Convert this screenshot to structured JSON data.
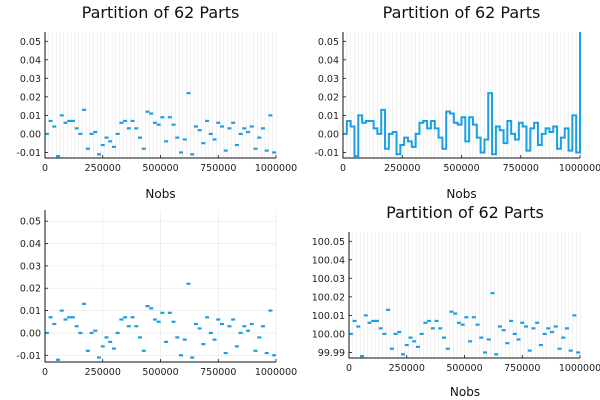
{
  "series_color": "#199fe3",
  "chart_data": [
    {
      "type": "scatter",
      "title": "Partition of 62 Parts",
      "xlabel": "Nobs",
      "ylabel": "",
      "xlim": [
        0,
        1000000
      ],
      "ylim": [
        -0.013,
        0.055
      ],
      "x_ticks": [
        0,
        250000,
        500000,
        750000,
        1000000
      ],
      "x_tick_labels": [
        "0",
        "250000",
        "500000",
        "750000",
        "1000000"
      ],
      "y_ticks": [
        -0.01,
        0.0,
        0.01,
        0.02,
        0.03,
        0.04,
        0.05
      ],
      "y_tick_labels": [
        "-0.01",
        "0.00",
        "0.01",
        "0.02",
        "0.03",
        "0.04",
        "0.05"
      ],
      "grid": "vertical-dense",
      "marker": "dash",
      "values": [
        0.0,
        0.007,
        0.004,
        -0.012,
        0.01,
        0.006,
        0.007,
        0.007,
        0.003,
        0.0,
        0.013,
        -0.008,
        0.0,
        0.001,
        -0.011,
        -0.006,
        -0.002,
        -0.004,
        -0.007,
        0.0,
        0.006,
        0.007,
        0.003,
        0.007,
        0.003,
        -0.002,
        -0.008,
        0.012,
        0.011,
        0.006,
        0.005,
        0.009,
        -0.004,
        0.009,
        0.005,
        -0.002,
        -0.01,
        -0.003,
        0.022,
        -0.011,
        0.004,
        0.002,
        -0.005,
        0.007,
        0.0,
        -0.003,
        0.006,
        0.004,
        -0.009,
        0.003,
        0.006,
        -0.006,
        0.0,
        0.003,
        0.001,
        0.004,
        -0.008,
        -0.002,
        0.003,
        -0.009,
        0.01,
        -0.01
      ]
    },
    {
      "type": "line",
      "title": "Partition of 62 Parts",
      "xlabel": "Nobs",
      "ylabel": "",
      "xlim": [
        0,
        1000000
      ],
      "ylim": [
        -0.013,
        0.055
      ],
      "x_ticks": [
        0,
        250000,
        500000,
        750000,
        1000000
      ],
      "x_tick_labels": [
        "0",
        "250000",
        "500000",
        "750000",
        "1000000"
      ],
      "y_ticks": [
        -0.01,
        0.0,
        0.01,
        0.02,
        0.03,
        0.04,
        0.05
      ],
      "y_tick_labels": [
        "-0.01",
        "0.00",
        "0.01",
        "0.02",
        "0.03",
        "0.04",
        "0.05"
      ],
      "grid": "vertical-dense",
      "step": true,
      "final_value": 0.055,
      "values": [
        0.0,
        0.007,
        0.004,
        -0.012,
        0.01,
        0.006,
        0.007,
        0.007,
        0.003,
        0.0,
        0.013,
        -0.008,
        0.0,
        0.001,
        -0.011,
        -0.006,
        -0.002,
        -0.004,
        -0.007,
        0.0,
        0.006,
        0.007,
        0.003,
        0.007,
        0.003,
        -0.002,
        -0.008,
        0.012,
        0.011,
        0.006,
        0.005,
        0.009,
        -0.004,
        0.009,
        0.005,
        -0.002,
        -0.01,
        -0.003,
        0.022,
        -0.011,
        0.004,
        0.002,
        -0.005,
        0.007,
        0.0,
        -0.003,
        0.006,
        0.004,
        -0.009,
        0.003,
        0.006,
        -0.006,
        0.0,
        0.003,
        0.001,
        0.004,
        -0.008,
        -0.002,
        0.003,
        -0.009,
        0.01,
        -0.01
      ]
    },
    {
      "type": "scatter",
      "title": "",
      "xlabel": "",
      "ylabel": "",
      "xlim": [
        0,
        1000000
      ],
      "ylim": [
        -0.013,
        0.055
      ],
      "x_ticks": [
        0,
        250000,
        500000,
        750000,
        1000000
      ],
      "x_tick_labels": [
        "0",
        "250000",
        "500000",
        "750000",
        "1000000"
      ],
      "y_ticks": [
        -0.01,
        0.0,
        0.01,
        0.02,
        0.03,
        0.04,
        0.05
      ],
      "y_tick_labels": [
        "-0.01",
        "0.00",
        "0.01",
        "0.02",
        "0.03",
        "0.04",
        "0.05"
      ],
      "grid": "standard",
      "marker": "dash",
      "values": [
        0.0,
        0.007,
        0.004,
        -0.012,
        0.01,
        0.006,
        0.007,
        0.007,
        0.003,
        0.0,
        0.013,
        -0.008,
        0.0,
        0.001,
        -0.011,
        -0.006,
        -0.002,
        -0.004,
        -0.007,
        0.0,
        0.006,
        0.007,
        0.003,
        0.007,
        0.003,
        -0.002,
        -0.008,
        0.012,
        0.011,
        0.006,
        0.005,
        0.009,
        -0.004,
        0.009,
        0.005,
        -0.002,
        -0.01,
        -0.003,
        0.022,
        -0.011,
        0.004,
        0.002,
        -0.005,
        0.007,
        0.0,
        -0.003,
        0.006,
        0.004,
        -0.009,
        0.003,
        0.006,
        -0.006,
        0.0,
        0.003,
        0.001,
        0.004,
        -0.008,
        -0.002,
        0.003,
        -0.009,
        0.01,
        -0.01
      ]
    },
    {
      "type": "scatter",
      "title": "Partition of 62 Parts",
      "xlabel": "Nobs",
      "ylabel": "",
      "xlim": [
        0,
        1000000
      ],
      "ylim": [
        99.987,
        100.055
      ],
      "x_ticks": [
        0,
        250000,
        500000,
        750000,
        1000000
      ],
      "x_tick_labels": [
        "0",
        "250000",
        "500000",
        "750000",
        "1000000"
      ],
      "y_ticks": [
        99.99,
        100.0,
        100.01,
        100.02,
        100.03,
        100.04,
        100.05
      ],
      "y_tick_labels": [
        "99.99",
        "100.00",
        "100.01",
        "100.02",
        "100.03",
        "100.04",
        "100.05"
      ],
      "grid": "vertical-dense",
      "marker": "dash",
      "values": [
        100.0,
        100.007,
        100.004,
        99.988,
        100.01,
        100.006,
        100.007,
        100.007,
        100.003,
        100.0,
        100.013,
        99.992,
        100.0,
        100.001,
        99.989,
        99.994,
        99.998,
        99.996,
        99.993,
        100.0,
        100.006,
        100.007,
        100.003,
        100.007,
        100.003,
        99.998,
        99.992,
        100.012,
        100.011,
        100.006,
        100.005,
        100.009,
        99.996,
        100.009,
        100.005,
        99.998,
        99.99,
        99.997,
        100.022,
        99.989,
        100.004,
        100.002,
        99.995,
        100.007,
        100.0,
        99.997,
        100.006,
        100.004,
        99.991,
        100.003,
        100.006,
        99.994,
        100.0,
        100.003,
        100.001,
        100.004,
        99.992,
        99.998,
        100.003,
        99.991,
        100.01,
        99.99
      ]
    }
  ]
}
